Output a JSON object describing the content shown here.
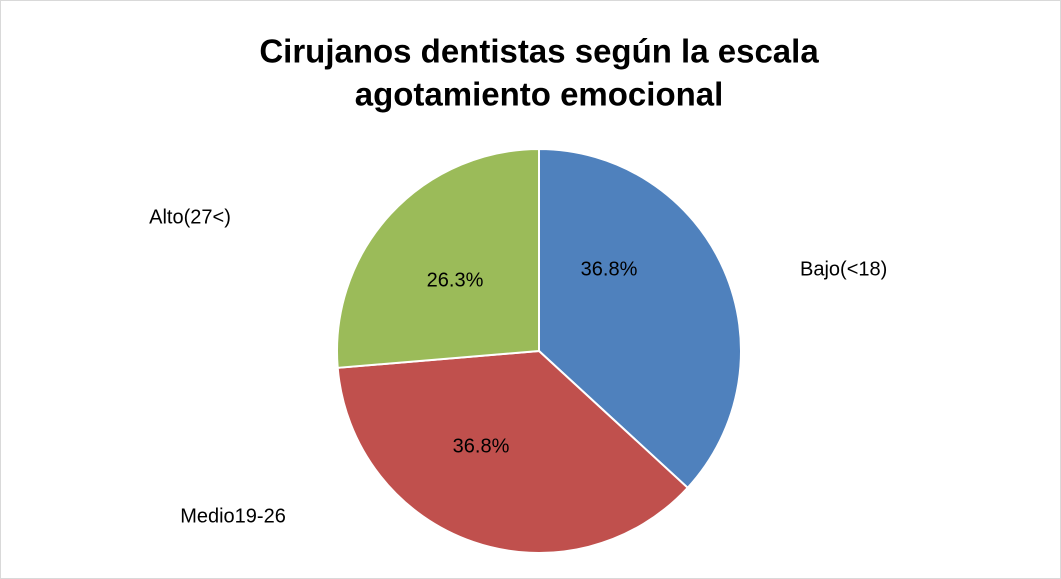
{
  "chart_data": {
    "type": "pie",
    "title": [
      "Cirujanos dentistas según la escala",
      "agotamiento emocional"
    ],
    "categories": [
      "Bajo(<18)",
      "Medio19-26",
      "Alto(27<)"
    ],
    "values": [
      36.8,
      36.8,
      26.3
    ],
    "value_labels": [
      "36.8%",
      "36.8%",
      "26.3%"
    ],
    "colors": [
      "#4f81bd",
      "#c0504d",
      "#9bbb59"
    ]
  }
}
